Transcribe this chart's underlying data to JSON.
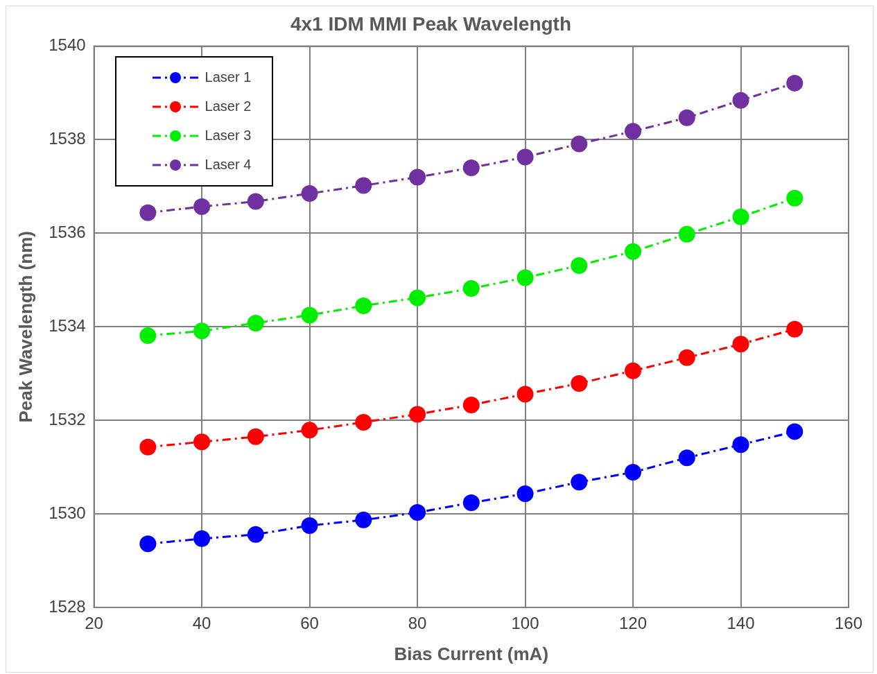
{
  "chart_data": {
    "type": "line",
    "title": "4x1 IDM MMI Peak Wavelength",
    "xlabel": "Bias Current (mA)",
    "ylabel": "Peak Wavelength (nm)",
    "x": [
      30,
      40,
      50,
      60,
      70,
      80,
      90,
      100,
      110,
      120,
      130,
      140,
      150
    ],
    "series": [
      {
        "name": "Laser 1",
        "color": "#0000ff",
        "values": [
          1529.36,
          1529.47,
          1529.56,
          1529.75,
          1529.87,
          1530.03,
          1530.24,
          1530.43,
          1530.68,
          1530.89,
          1531.2,
          1531.48,
          1531.76
        ]
      },
      {
        "name": "Laser 2",
        "color": "#ff0000",
        "values": [
          1531.43,
          1531.54,
          1531.65,
          1531.79,
          1531.96,
          1532.13,
          1532.33,
          1532.56,
          1532.79,
          1533.06,
          1533.34,
          1533.63,
          1533.95
        ]
      },
      {
        "name": "Laser 3",
        "color": "#00ee00",
        "values": [
          1533.81,
          1533.91,
          1534.08,
          1534.25,
          1534.45,
          1534.62,
          1534.82,
          1535.05,
          1535.31,
          1535.61,
          1535.98,
          1536.35,
          1536.75
        ]
      },
      {
        "name": "Laser 4",
        "color": "#7030a0",
        "values": [
          1536.44,
          1536.57,
          1536.68,
          1536.85,
          1537.02,
          1537.2,
          1537.4,
          1537.63,
          1537.91,
          1538.18,
          1538.47,
          1538.84,
          1539.21
        ]
      }
    ],
    "xlim": [
      20,
      160
    ],
    "xticks": [
      20,
      40,
      60,
      80,
      100,
      120,
      140,
      160
    ],
    "ylim": [
      1528,
      1540
    ],
    "yticks": [
      1528,
      1530,
      1532,
      1534,
      1536,
      1538,
      1540
    ],
    "grid": true,
    "legend": "top left",
    "marker": "circle",
    "line_style": "dashed"
  }
}
